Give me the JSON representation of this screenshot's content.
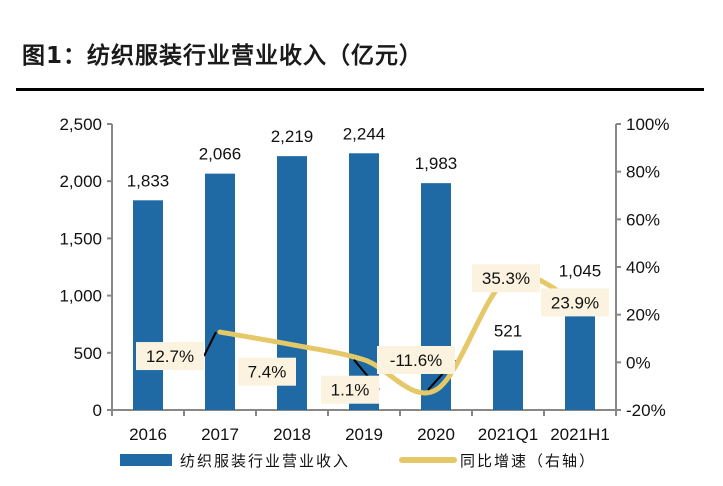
{
  "title": "图1：纺织服装行业营业收入（亿元）",
  "chart_data": {
    "type": "bar+line",
    "categories": [
      "2016",
      "2017",
      "2018",
      "2019",
      "2020",
      "2021Q1",
      "2021H1"
    ],
    "series": [
      {
        "name": "纺织服装行业营业收入",
        "type": "bar",
        "axis": "left",
        "values": [
          1833,
          2066,
          2219,
          2244,
          1983,
          521,
          1045
        ],
        "labels": [
          "1,833",
          "2,066",
          "2,219",
          "2,244",
          "1,983",
          "521",
          "1,045"
        ],
        "color": "#1F6AA5"
      },
      {
        "name": "同比增速（右轴）",
        "type": "line",
        "axis": "right",
        "values": [
          null,
          12.7,
          7.4,
          1.1,
          -11.6,
          35.3,
          23.9
        ],
        "labels": [
          "",
          "12.7%",
          "7.4%",
          "1.1%",
          "-11.6%",
          "35.3%",
          "23.9%"
        ],
        "color": "#E5C868"
      }
    ],
    "left_axis": {
      "range": [
        0,
        2500
      ],
      "ticks": [
        "0",
        "500",
        "1,000",
        "1,500",
        "2,000",
        "2,500"
      ]
    },
    "right_axis": {
      "range": [
        -20,
        100
      ],
      "ticks": [
        "-20%",
        "0%",
        "20%",
        "40%",
        "60%",
        "80%",
        "100%"
      ]
    },
    "grid": false,
    "legend": "bottom",
    "label_box_color": "#FBF3DF"
  }
}
